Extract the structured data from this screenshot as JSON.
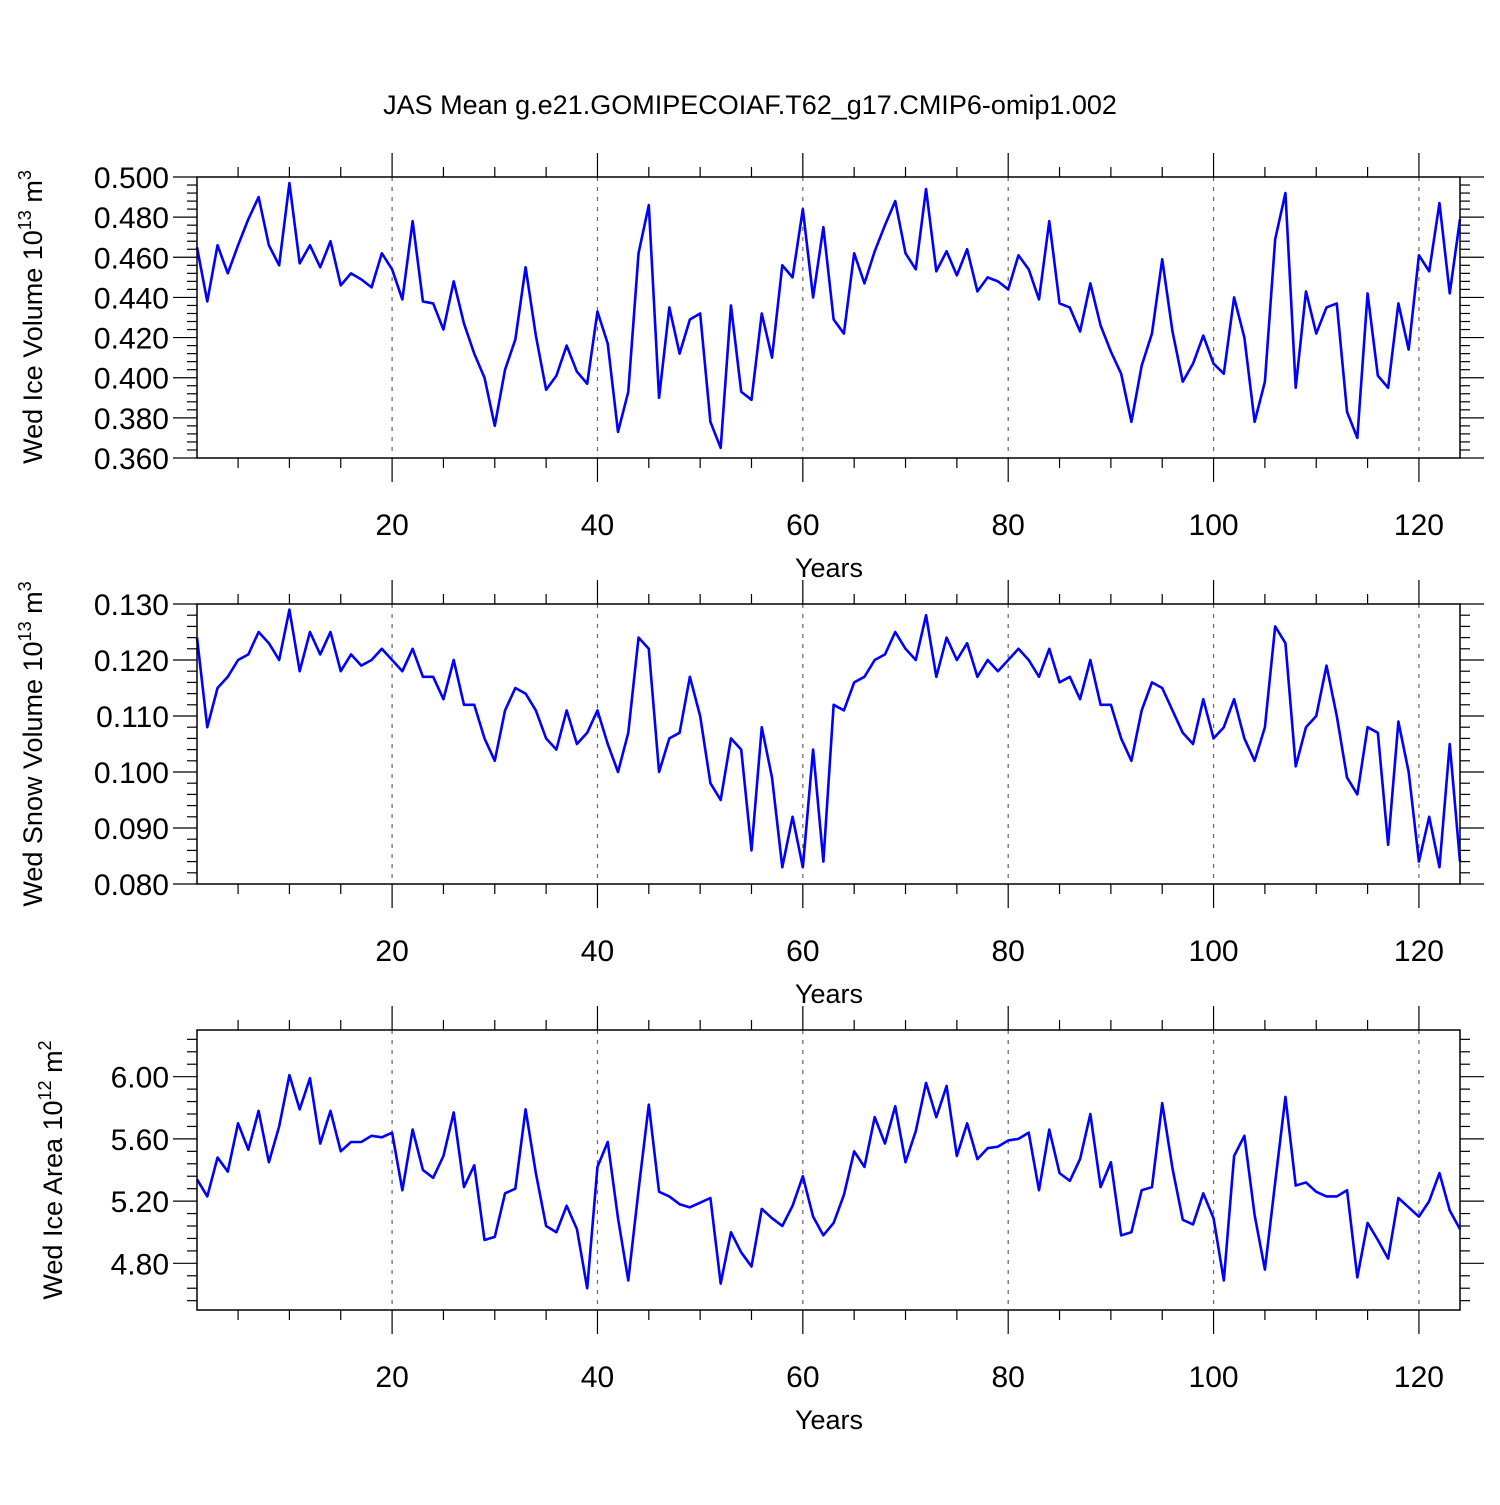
{
  "title": "JAS Mean g.e21.GOMIPECOIAF.T62_g17.CMIP6-omip1.002",
  "colors": {
    "line": "#0000ff",
    "axis": "#000000",
    "grid": "#666666"
  },
  "chart_data": [
    {
      "type": "line",
      "ylabel_main": "Wed Ice Volume 10",
      "ylabel_exp": "13",
      "ylabel_unit": " m",
      "ylabel_unit_exp": "3",
      "xlabel": "Years",
      "xlim": [
        1,
        124
      ],
      "ylim": [
        0.36,
        0.5
      ],
      "yticks": [
        0.36,
        0.38,
        0.4,
        0.42,
        0.44,
        0.46,
        0.48,
        0.5
      ],
      "ytick_labels": [
        "0.360",
        "0.380",
        "0.400",
        "0.420",
        "0.440",
        "0.460",
        "0.480",
        "0.500"
      ],
      "xticks": [
        20,
        40,
        60,
        80,
        100,
        120
      ],
      "xtick_labels": [
        "20",
        "40",
        "60",
        "80",
        "100",
        "120"
      ],
      "x_start": 1,
      "values": [
        0.465,
        0.438,
        0.466,
        0.452,
        0.466,
        0.479,
        0.49,
        0.466,
        0.456,
        0.497,
        0.457,
        0.466,
        0.455,
        0.468,
        0.446,
        0.452,
        0.449,
        0.445,
        0.462,
        0.454,
        0.439,
        0.478,
        0.438,
        0.437,
        0.424,
        0.448,
        0.427,
        0.412,
        0.4,
        0.376,
        0.404,
        0.419,
        0.455,
        0.421,
        0.394,
        0.401,
        0.416,
        0.403,
        0.397,
        0.433,
        0.417,
        0.373,
        0.393,
        0.462,
        0.486,
        0.39,
        0.435,
        0.412,
        0.429,
        0.432,
        0.378,
        0.365,
        0.436,
        0.393,
        0.389,
        0.432,
        0.41,
        0.456,
        0.45,
        0.484,
        0.44,
        0.475,
        0.429,
        0.422,
        0.462,
        0.447,
        0.463,
        0.476,
        0.488,
        0.462,
        0.454,
        0.494,
        0.453,
        0.463,
        0.451,
        0.464,
        0.443,
        0.45,
        0.448,
        0.444,
        0.461,
        0.454,
        0.439,
        0.478,
        0.437,
        0.435,
        0.423,
        0.447,
        0.426,
        0.413,
        0.402,
        0.378,
        0.406,
        0.422,
        0.459,
        0.423,
        0.398,
        0.407,
        0.421,
        0.407,
        0.402,
        0.44,
        0.42,
        0.378,
        0.398,
        0.469,
        0.492,
        0.395,
        0.443,
        0.422,
        0.435,
        0.437,
        0.383,
        0.37,
        0.442,
        0.401,
        0.395,
        0.437,
        0.414,
        0.461,
        0.453,
        0.487,
        0.442,
        0.479
      ]
    },
    {
      "type": "line",
      "ylabel_main": "Wed Snow Volume 10",
      "ylabel_exp": "13",
      "ylabel_unit": " m",
      "ylabel_unit_exp": "3",
      "xlabel": "Years",
      "xlim": [
        1,
        124
      ],
      "ylim": [
        0.08,
        0.13
      ],
      "yticks": [
        0.08,
        0.09,
        0.1,
        0.11,
        0.12,
        0.13
      ],
      "ytick_labels": [
        "0.080",
        "0.090",
        "0.100",
        "0.110",
        "0.120",
        "0.130"
      ],
      "xticks": [
        20,
        40,
        60,
        80,
        100,
        120
      ],
      "xtick_labels": [
        "20",
        "40",
        "60",
        "80",
        "100",
        "120"
      ],
      "x_start": 1,
      "values": [
        0.124,
        0.108,
        0.115,
        0.117,
        0.12,
        0.121,
        0.125,
        0.123,
        0.12,
        0.129,
        0.118,
        0.125,
        0.121,
        0.125,
        0.118,
        0.121,
        0.119,
        0.12,
        0.122,
        0.12,
        0.118,
        0.122,
        0.117,
        0.117,
        0.113,
        0.12,
        0.112,
        0.112,
        0.106,
        0.102,
        0.111,
        0.115,
        0.114,
        0.111,
        0.106,
        0.104,
        0.111,
        0.105,
        0.107,
        0.111,
        0.105,
        0.1,
        0.107,
        0.124,
        0.122,
        0.1,
        0.106,
        0.107,
        0.117,
        0.11,
        0.098,
        0.095,
        0.106,
        0.104,
        0.086,
        0.108,
        0.099,
        0.083,
        0.092,
        0.083,
        0.104,
        0.084,
        0.112,
        0.111,
        0.116,
        0.117,
        0.12,
        0.121,
        0.125,
        0.122,
        0.12,
        0.128,
        0.117,
        0.124,
        0.12,
        0.123,
        0.117,
        0.12,
        0.118,
        0.12,
        0.122,
        0.12,
        0.117,
        0.122,
        0.116,
        0.117,
        0.113,
        0.12,
        0.112,
        0.112,
        0.106,
        0.102,
        0.111,
        0.116,
        0.115,
        0.111,
        0.107,
        0.105,
        0.113,
        0.106,
        0.108,
        0.113,
        0.106,
        0.102,
        0.108,
        0.126,
        0.123,
        0.101,
        0.108,
        0.11,
        0.119,
        0.11,
        0.099,
        0.096,
        0.108,
        0.107,
        0.087,
        0.109,
        0.1,
        0.084,
        0.092,
        0.083,
        0.105,
        0.084
      ]
    },
    {
      "type": "line",
      "ylabel_main": "Wed Ice Area 10",
      "ylabel_exp": "12",
      "ylabel_unit": " m",
      "ylabel_unit_exp": "2",
      "xlabel": "Years",
      "xlim": [
        1,
        124
      ],
      "ylim": [
        4.5,
        6.3
      ],
      "yticks": [
        4.8,
        5.2,
        5.6,
        6.0
      ],
      "ytick_labels": [
        "4.80",
        "5.20",
        "5.60",
        "6.00"
      ],
      "xticks": [
        20,
        40,
        60,
        80,
        100,
        120
      ],
      "xtick_labels": [
        "20",
        "40",
        "60",
        "80",
        "100",
        "120"
      ],
      "x_start": 1,
      "values": [
        5.34,
        5.23,
        5.48,
        5.39,
        5.7,
        5.53,
        5.78,
        5.45,
        5.68,
        6.01,
        5.79,
        5.99,
        5.57,
        5.78,
        5.52,
        5.58,
        5.58,
        5.62,
        5.61,
        5.64,
        5.27,
        5.66,
        5.4,
        5.35,
        5.49,
        5.77,
        5.29,
        5.43,
        4.95,
        4.97,
        5.25,
        5.28,
        5.79,
        5.38,
        5.04,
        5.0,
        5.17,
        5.02,
        4.64,
        5.42,
        5.58,
        5.09,
        4.69,
        5.27,
        5.82,
        5.26,
        5.23,
        5.18,
        5.16,
        5.19,
        5.22,
        4.67,
        5.0,
        4.87,
        4.78,
        5.15,
        5.09,
        5.04,
        5.17,
        5.36,
        5.1,
        4.98,
        5.06,
        5.24,
        5.52,
        5.42,
        5.74,
        5.57,
        5.81,
        5.45,
        5.65,
        5.96,
        5.74,
        5.94,
        5.49,
        5.7,
        5.47,
        5.54,
        5.55,
        5.59,
        5.6,
        5.64,
        5.27,
        5.66,
        5.38,
        5.33,
        5.47,
        5.76,
        5.29,
        5.45,
        4.98,
        5.0,
        5.27,
        5.29,
        5.83,
        5.41,
        5.08,
        5.05,
        5.25,
        5.09,
        4.69,
        5.49,
        5.62,
        5.11,
        4.76,
        5.32,
        5.87,
        5.3,
        5.32,
        5.26,
        5.23,
        5.23,
        5.27,
        4.71,
        5.06,
        4.95,
        4.83,
        5.22,
        5.16,
        5.1,
        5.2,
        5.38,
        5.14,
        5.02
      ]
    }
  ]
}
